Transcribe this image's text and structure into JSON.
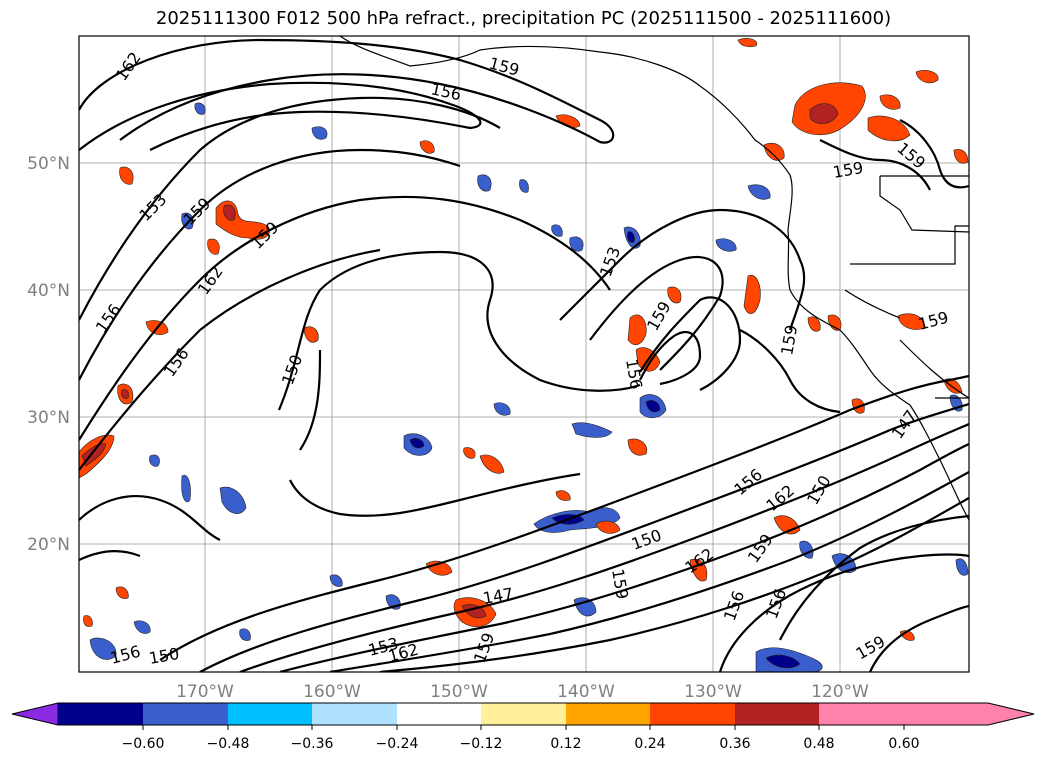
{
  "title": "2025111300 F012 500 hPa refract., precipitation PC (2025111500 - 2025111600)",
  "lat_labels": [
    "50°N",
    "40°N",
    "30°N",
    "20°N"
  ],
  "lon_labels": [
    "170°W",
    "160°W",
    "150°W",
    "140°W",
    "130°W",
    "120°W"
  ],
  "contour_labels": [
    "162",
    "159",
    "156",
    "159",
    "153",
    "159",
    "162",
    "156",
    "156",
    "150",
    "159",
    "153",
    "159",
    "156",
    "159",
    "159",
    "159",
    "156",
    "162",
    "150",
    "150",
    "162",
    "159",
    "156",
    "156",
    "147",
    "159",
    "147",
    "153",
    "162",
    "156",
    "150",
    "159",
    "159"
  ],
  "colorbar": {
    "colors": [
      "#8a2be2",
      "#00008b",
      "#3a5fcd",
      "#00bfff",
      "#b0e2ff",
      "#ffffff",
      "#fff099",
      "#ffa500",
      "#ff4500",
      "#b22222",
      "#ff82ab"
    ],
    "tick_labels": [
      "−0.60",
      "−0.48",
      "−0.36",
      "−0.24",
      "−0.12",
      "0.12",
      "0.24",
      "0.36",
      "0.48",
      "0.60"
    ]
  }
}
